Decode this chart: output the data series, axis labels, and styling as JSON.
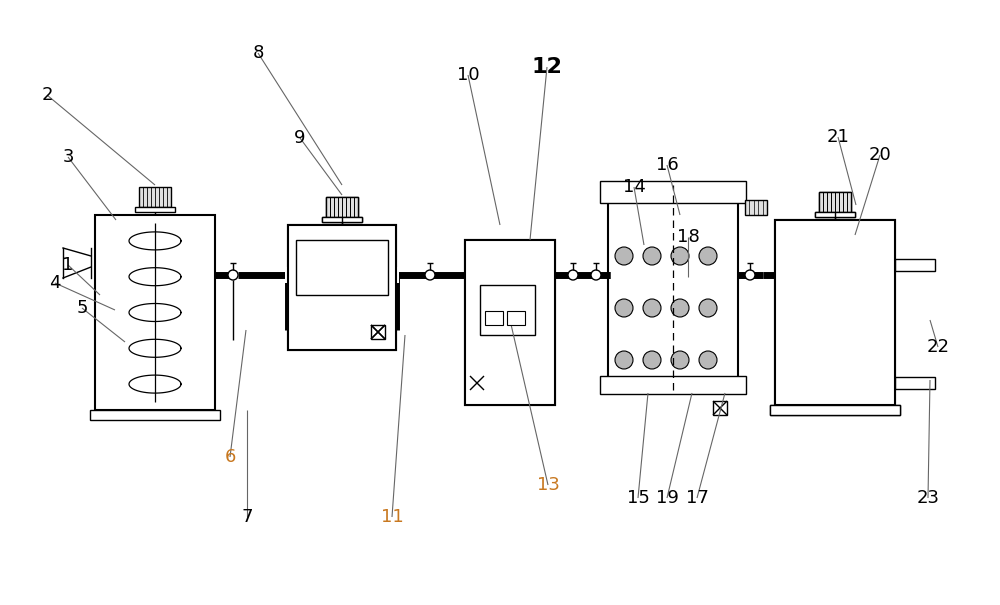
{
  "bg_color": "#ffffff",
  "line_color": "#000000",
  "figsize": [
    10.0,
    6.05
  ],
  "dpi": 100
}
